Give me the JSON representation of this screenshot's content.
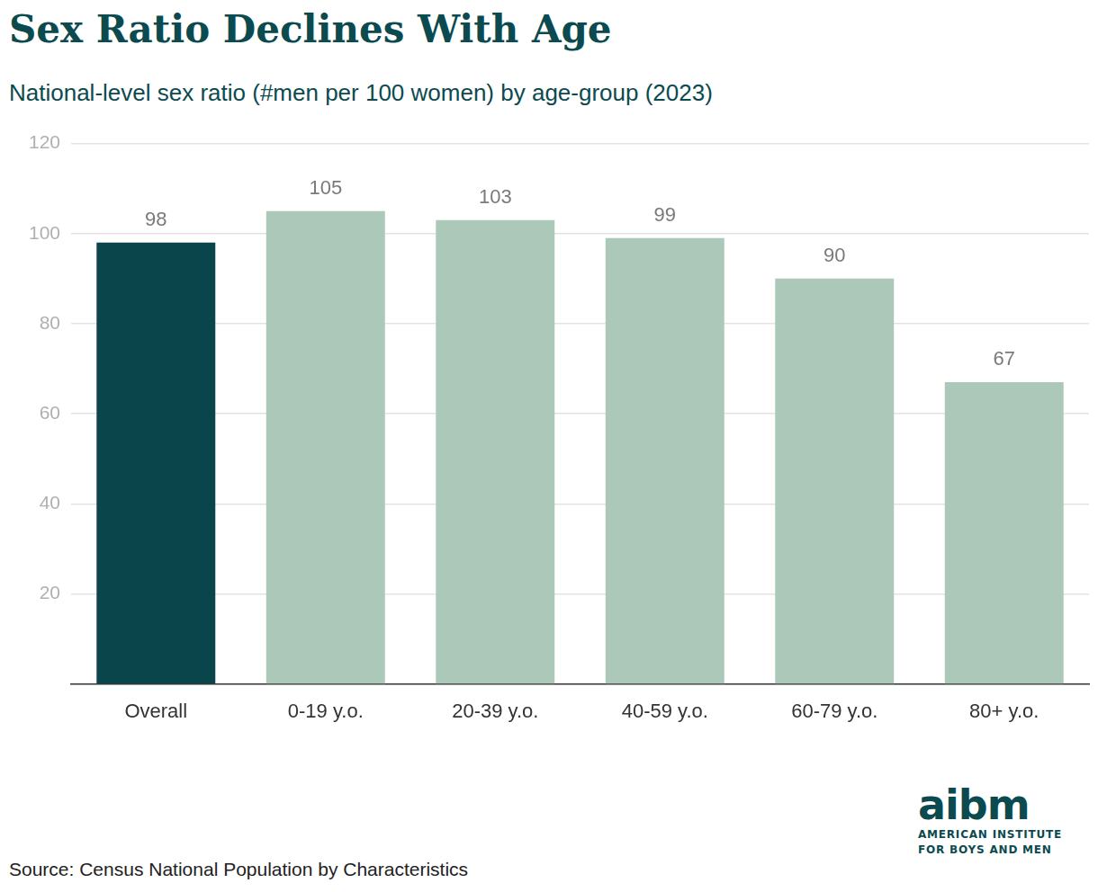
{
  "chart_data": {
    "type": "bar",
    "title": "Sex Ratio Declines With Age",
    "subtitle": "National-level sex ratio (#men per 100 women) by age-group (2023)",
    "categories": [
      "Overall",
      "0-19 y.o.",
      "20-39 y.o.",
      "40-59 y.o.",
      "60-79 y.o.",
      "80+ y.o."
    ],
    "values": [
      98,
      105,
      103,
      99,
      90,
      67
    ],
    "colors": [
      "#09454b",
      "#abc8b8",
      "#abc8b8",
      "#abc8b8",
      "#abc8b8",
      "#abc8b8"
    ],
    "ylim": [
      0,
      120
    ],
    "yticks": [
      20,
      40,
      60,
      80,
      100,
      120
    ],
    "grid": true,
    "data_labels": true,
    "source": "Source: Census National Population by Characteristics",
    "logo": {
      "name": "aibm",
      "lines": [
        "AMERICAN INSTITUTE",
        "FOR BOYS AND MEN"
      ]
    }
  }
}
